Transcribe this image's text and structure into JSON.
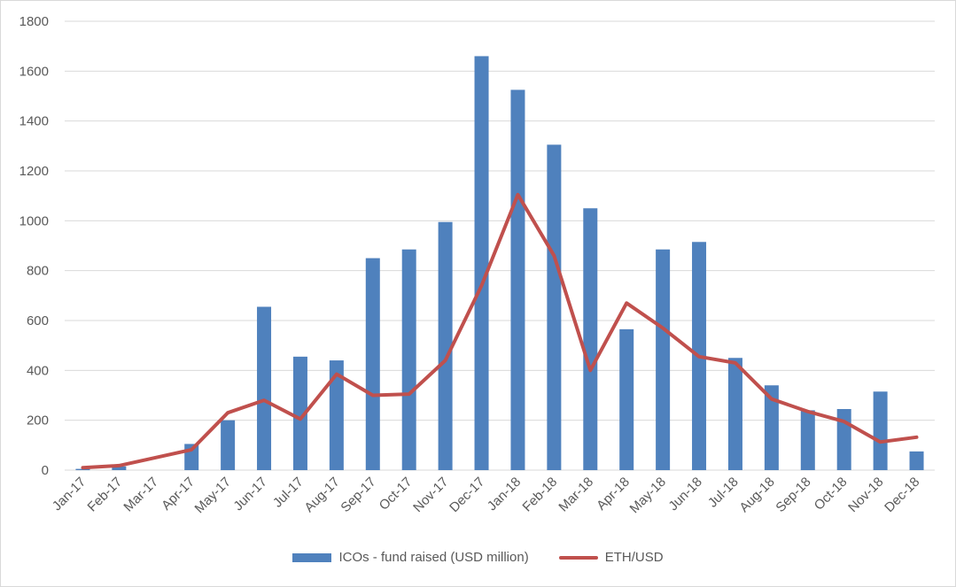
{
  "colors": {
    "bar": "#4f81bd",
    "line": "#c0504d",
    "grid": "#d9d9d9",
    "text": "#595959"
  },
  "chart_data": {
    "type": "bar",
    "title": "",
    "xlabel": "",
    "ylabel": "",
    "ylim": [
      0,
      1800
    ],
    "yticks": [
      0,
      200,
      400,
      600,
      800,
      1000,
      1200,
      1400,
      1600,
      1800
    ],
    "grid": true,
    "legend_position": "bottom",
    "categories": [
      "Jan-17",
      "Feb-17",
      "Mar-17",
      "Apr-17",
      "May-17",
      "Jun-17",
      "Jul-17",
      "Aug-17",
      "Sep-17",
      "Oct-17",
      "Nov-17",
      "Dec-17",
      "Jan-18",
      "Feb-18",
      "Mar-18",
      "Apr-18",
      "May-18",
      "Jun-18",
      "Jul-18",
      "Aug-18",
      "Sep-18",
      "Oct-18",
      "Nov-18",
      "Dec-18"
    ],
    "series": [
      {
        "name": "ICOs - fund raised (USD million)",
        "type": "bar",
        "values": [
          5,
          15,
          0,
          105,
          200,
          655,
          455,
          440,
          850,
          885,
          995,
          1660,
          1525,
          1305,
          1050,
          565,
          885,
          915,
          450,
          340,
          240,
          245,
          315,
          75
        ]
      },
      {
        "name": "ETH/USD",
        "type": "line",
        "values": [
          10,
          18,
          50,
          82,
          230,
          280,
          205,
          385,
          300,
          305,
          440,
          740,
          1105,
          860,
          400,
          670,
          570,
          455,
          430,
          285,
          235,
          195,
          113,
          132
        ]
      }
    ]
  }
}
